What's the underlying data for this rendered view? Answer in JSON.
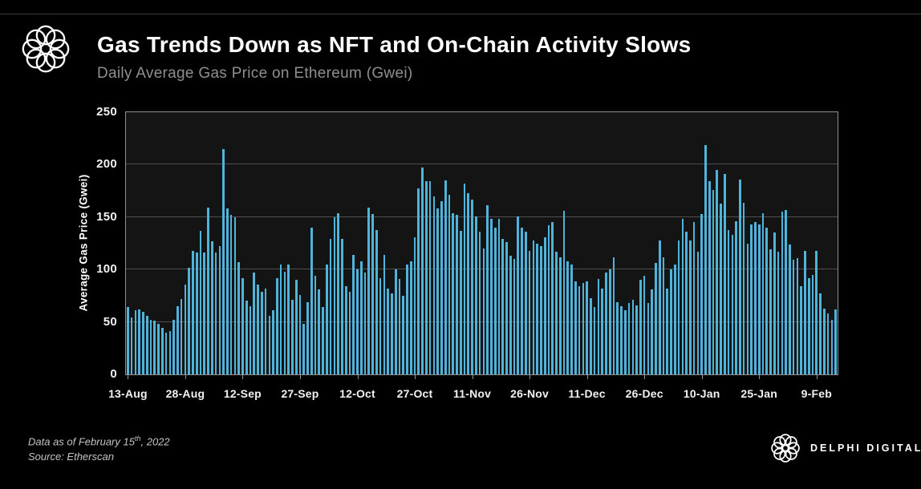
{
  "header": {
    "title": "Gas Trends Down as NFT and On-Chain Activity Slows",
    "subtitle": "Daily Average Gas Price on Ethereum (Gwei)"
  },
  "colors": {
    "background": "#000000",
    "plot_background": "#141414",
    "bar": "#4FB3DA",
    "gridline": "#4e4e4e",
    "axis_border": "#8f8f8f",
    "title_text": "#ffffff",
    "subtitle_text": "#8f8f8f",
    "footnote_text": "#c4c4c4"
  },
  "chart_data": {
    "type": "bar",
    "title": "Daily Average Gas Price on Ethereum (Gwei)",
    "xlabel": "",
    "ylabel": "Average Gas Price (Gwei)",
    "ylim": [
      0,
      250
    ],
    "yticks": [
      0,
      50,
      100,
      150,
      200,
      250
    ],
    "grid": true,
    "legend_position": "none",
    "x_frequency": "daily",
    "x_range": "13-Aug-2021 through 14-Feb-2022",
    "x_tick_labels": [
      "13-Aug",
      "28-Aug",
      "12-Sep",
      "27-Sep",
      "12-Oct",
      "27-Oct",
      "11-Nov",
      "26-Nov",
      "11-Dec",
      "26-Dec",
      "10-Jan",
      "25-Jan",
      "9-Feb"
    ],
    "x_tick_day_indices": [
      0,
      15,
      30,
      45,
      60,
      75,
      90,
      105,
      120,
      135,
      150,
      165,
      180
    ],
    "values": [
      64,
      54,
      61,
      62,
      60,
      56,
      52,
      51,
      48,
      44,
      40,
      41,
      52,
      65,
      72,
      86,
      102,
      118,
      116,
      137,
      116,
      159,
      127,
      116,
      122,
      215,
      158,
      152,
      150,
      107,
      92,
      70,
      65,
      97,
      86,
      79,
      82,
      56,
      61,
      92,
      105,
      98,
      105,
      71,
      90,
      76,
      48,
      69,
      140,
      94,
      81,
      64,
      105,
      129,
      150,
      154,
      129,
      84,
      79,
      114,
      100,
      108,
      97,
      159,
      153,
      138,
      92,
      114,
      82,
      77,
      100,
      91,
      75,
      105,
      108,
      131,
      177,
      197,
      184,
      184,
      170,
      158,
      165,
      185,
      171,
      154,
      152,
      137,
      182,
      173,
      167,
      151,
      136,
      120,
      161,
      148,
      140,
      148,
      129,
      126,
      113,
      110,
      151,
      140,
      136,
      118,
      128,
      125,
      122,
      131,
      142,
      145,
      117,
      112,
      156,
      108,
      105,
      89,
      84,
      87,
      89,
      73,
      64,
      91,
      82,
      97,
      100,
      112,
      69,
      65,
      61,
      68,
      71,
      66,
      90,
      94,
      68,
      81,
      106,
      128,
      112,
      82,
      100,
      105,
      128,
      148,
      136,
      128,
      145,
      117,
      153,
      219,
      184,
      176,
      195,
      163,
      191,
      138,
      133,
      146,
      186,
      164,
      125,
      143,
      145,
      143,
      154,
      140,
      119,
      135,
      117,
      155,
      157,
      124,
      109,
      111,
      84,
      118,
      92,
      95,
      118,
      77,
      63,
      58,
      52,
      62
    ]
  },
  "footer": {
    "line1_prefix": "Data as of February 15",
    "line1_sup": "th",
    "line1_suffix": ", 2022",
    "line2": "Source:  Etherscan",
    "brand": "DELPHI DIGITAL"
  },
  "icons": {
    "header_logo": "delphi-knot-logo",
    "footer_logo": "delphi-knot-logo"
  }
}
